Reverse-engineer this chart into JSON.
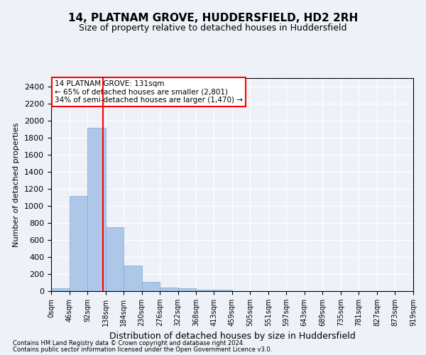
{
  "title": "14, PLATNAM GROVE, HUDDERSFIELD, HD2 2RH",
  "subtitle": "Size of property relative to detached houses in Huddersfield",
  "xlabel": "Distribution of detached houses by size in Huddersfield",
  "ylabel": "Number of detached properties",
  "footnote1": "Contains HM Land Registry data © Crown copyright and database right 2024.",
  "footnote2": "Contains public sector information licensed under the Open Government Licence v3.0.",
  "bin_edges": [
    0,
    46,
    92,
    138,
    184,
    230,
    276,
    322,
    368,
    413,
    459,
    505,
    551,
    597,
    643,
    689,
    735,
    781,
    827,
    873,
    919
  ],
  "bar_heights": [
    30,
    1120,
    1920,
    750,
    300,
    105,
    42,
    30,
    20,
    15,
    0,
    0,
    0,
    0,
    0,
    0,
    0,
    0,
    0,
    0
  ],
  "bar_color": "#aec6e8",
  "bar_edgecolor": "#7aaed0",
  "vline_x": 131,
  "vline_color": "red",
  "ylim": [
    0,
    2500
  ],
  "yticks": [
    0,
    200,
    400,
    600,
    800,
    1000,
    1200,
    1400,
    1600,
    1800,
    2000,
    2200,
    2400
  ],
  "annotation_text": "14 PLATNAM GROVE: 131sqm\n← 65% of detached houses are smaller (2,801)\n34% of semi-detached houses are larger (1,470) →",
  "annotation_box_color": "white",
  "annotation_box_edgecolor": "red",
  "background_color": "#eef2f8",
  "grid_color": "white"
}
